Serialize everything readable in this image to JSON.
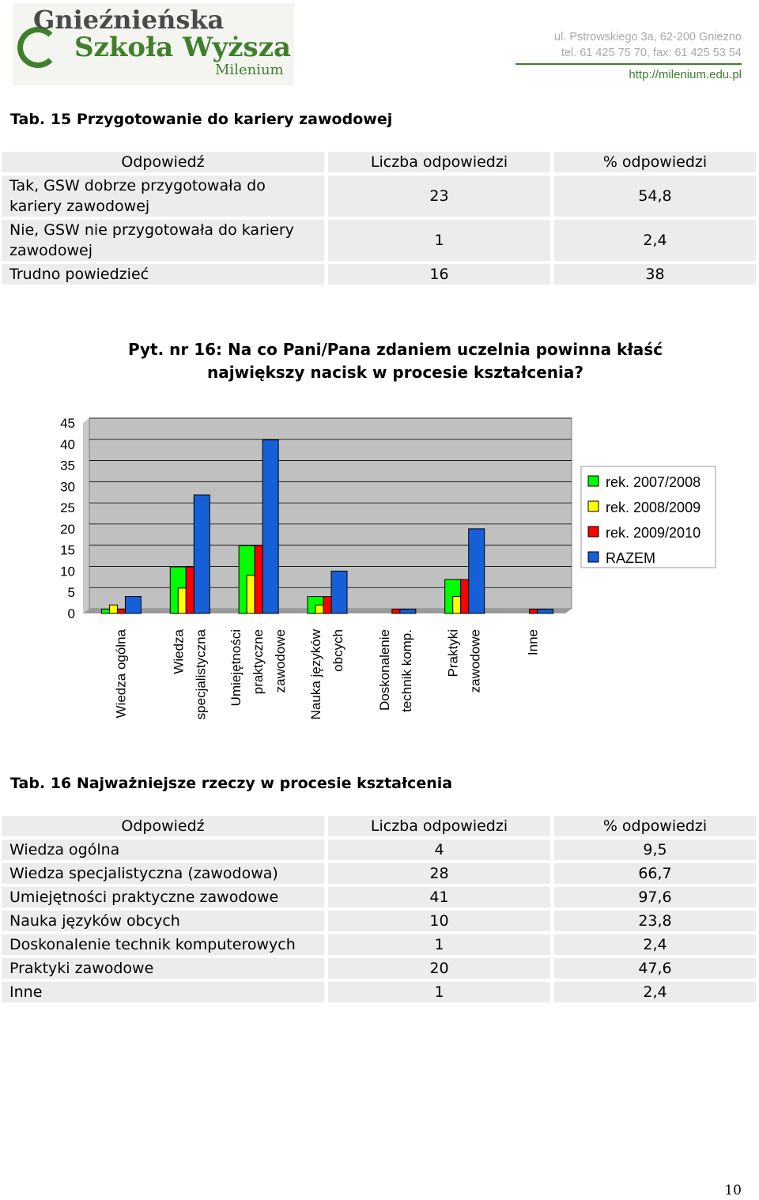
{
  "header": {
    "logo": {
      "line1": "Gnieźnieńska",
      "line2": "Szkoła Wyższa",
      "line3": "Milenium"
    },
    "address": "ul. Pstrowskiego 3a, 62-200 Gniezno",
    "phone": "tel. 61 425 75 70, fax: 61 425 53 54",
    "url": "http://milenium.edu.pl"
  },
  "table15": {
    "caption": "Tab. 15 Przygotowanie do kariery zawodowej",
    "headers": [
      "Odpowiedź",
      "Liczba odpowiedzi",
      "% odpowiedzi"
    ],
    "rows": [
      {
        "answer": "Tak, GSW dobrze przygotowała do kariery zawodowej",
        "count": "23",
        "pct": "54,8"
      },
      {
        "answer": "Nie, GSW nie przygotowała do kariery zawodowej",
        "count": "1",
        "pct": "2,4"
      },
      {
        "answer": "Trudno powiedzieć",
        "count": "16",
        "pct": "38"
      }
    ]
  },
  "question": {
    "title": "Pyt. nr 16: Na co Pani/Pana zdaniem uczelnia powinna kłaść największy nacisk w procesie kształcenia?"
  },
  "chart_data": {
    "type": "bar",
    "ylim": [
      0,
      45
    ],
    "yticks": [
      0,
      5,
      10,
      15,
      20,
      25,
      30,
      35,
      40,
      45
    ],
    "grid": true,
    "legend_position": "right",
    "categories": [
      [
        "Wiedza ogólna"
      ],
      [
        "Wiedza",
        "specjalistyczna"
      ],
      [
        "Umiejętności",
        "praktyczne",
        "zawodowe"
      ],
      [
        "Nauka języków",
        "obcych"
      ],
      [
        "Doskonalenie",
        "technik komp."
      ],
      [
        "Praktyki",
        "zawodowe"
      ],
      [
        "Inne"
      ]
    ],
    "series": [
      {
        "name": "rek. 2007/2008",
        "color": "#00ff00",
        "values": [
          1,
          11,
          16,
          4,
          0,
          8,
          0
        ]
      },
      {
        "name": "rek. 2008/2009",
        "color": "#ffff00",
        "values": [
          2,
          6,
          9,
          2,
          0,
          4,
          0
        ]
      },
      {
        "name": "rek. 2009/2010",
        "color": "#ff0000",
        "values": [
          1,
          11,
          16,
          4,
          1,
          8,
          1
        ]
      },
      {
        "name": "RAZEM",
        "color": "#1560d8",
        "values": [
          4,
          28,
          41,
          10,
          1,
          20,
          1
        ]
      }
    ]
  },
  "table16": {
    "caption": "Tab. 16 Najważniejsze rzeczy w procesie kształcenia",
    "headers": [
      "Odpowiedź",
      "Liczba odpowiedzi",
      "% odpowiedzi"
    ],
    "rows": [
      {
        "answer": "Wiedza ogólna",
        "count": "4",
        "pct": "9,5"
      },
      {
        "answer": "Wiedza specjalistyczna (zawodowa)",
        "count": "28",
        "pct": "66,7"
      },
      {
        "answer": "Umiejętności praktyczne zawodowe",
        "count": "41",
        "pct": "97,6"
      },
      {
        "answer": "Nauka języków obcych",
        "count": "10",
        "pct": "23,8"
      },
      {
        "answer": "Doskonalenie technik komputerowych",
        "count": "1",
        "pct": "2,4"
      },
      {
        "answer": "Praktyki zawodowe",
        "count": "20",
        "pct": "47,6"
      },
      {
        "answer": "Inne",
        "count": "1",
        "pct": "2,4"
      }
    ]
  },
  "page": {
    "number": "10"
  }
}
